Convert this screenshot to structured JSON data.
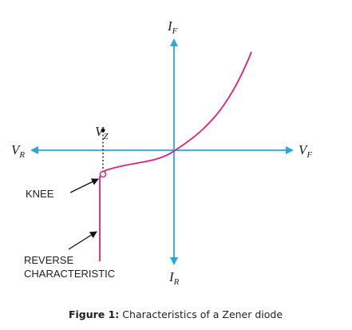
{
  "axes": {
    "top": {
      "main": "I",
      "sub": "F"
    },
    "bottom": {
      "main": "I",
      "sub": "R"
    },
    "left": {
      "main": "V",
      "sub": "R"
    },
    "right": {
      "main": "V",
      "sub": "F"
    }
  },
  "zener_voltage": {
    "main": "V",
    "sub": "Z"
  },
  "annotations": {
    "knee": "KNEE",
    "reverse": [
      "REVERSE",
      "CHARACTERISTIC"
    ]
  },
  "caption": {
    "label": "Figure 1:",
    "text": "Characteristics of a Zener diode"
  }
}
